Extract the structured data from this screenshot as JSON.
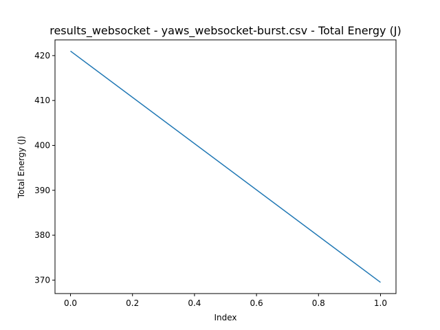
{
  "chart_data": {
    "type": "line",
    "title": "results_websocket - yaws_websocket-burst.csv - Total Energy (J)",
    "xlabel": "Index",
    "ylabel": "Total Energy (J)",
    "x": [
      0.0,
      1.0
    ],
    "series": [
      {
        "values": [
          421.0,
          369.5
        ],
        "color": "#1f77b4"
      }
    ],
    "xlim": [
      -0.05,
      1.05
    ],
    "ylim": [
      367.0,
      423.5
    ],
    "xticks": [
      0.0,
      0.2,
      0.4,
      0.6,
      0.8,
      1.0
    ],
    "xtick_labels": [
      "0.0",
      "0.2",
      "0.4",
      "0.6",
      "0.8",
      "1.0"
    ],
    "yticks": [
      370,
      380,
      390,
      400,
      410,
      420
    ],
    "ytick_labels": [
      "370",
      "380",
      "390",
      "400",
      "410",
      "420"
    ],
    "grid": false,
    "legend": false
  }
}
